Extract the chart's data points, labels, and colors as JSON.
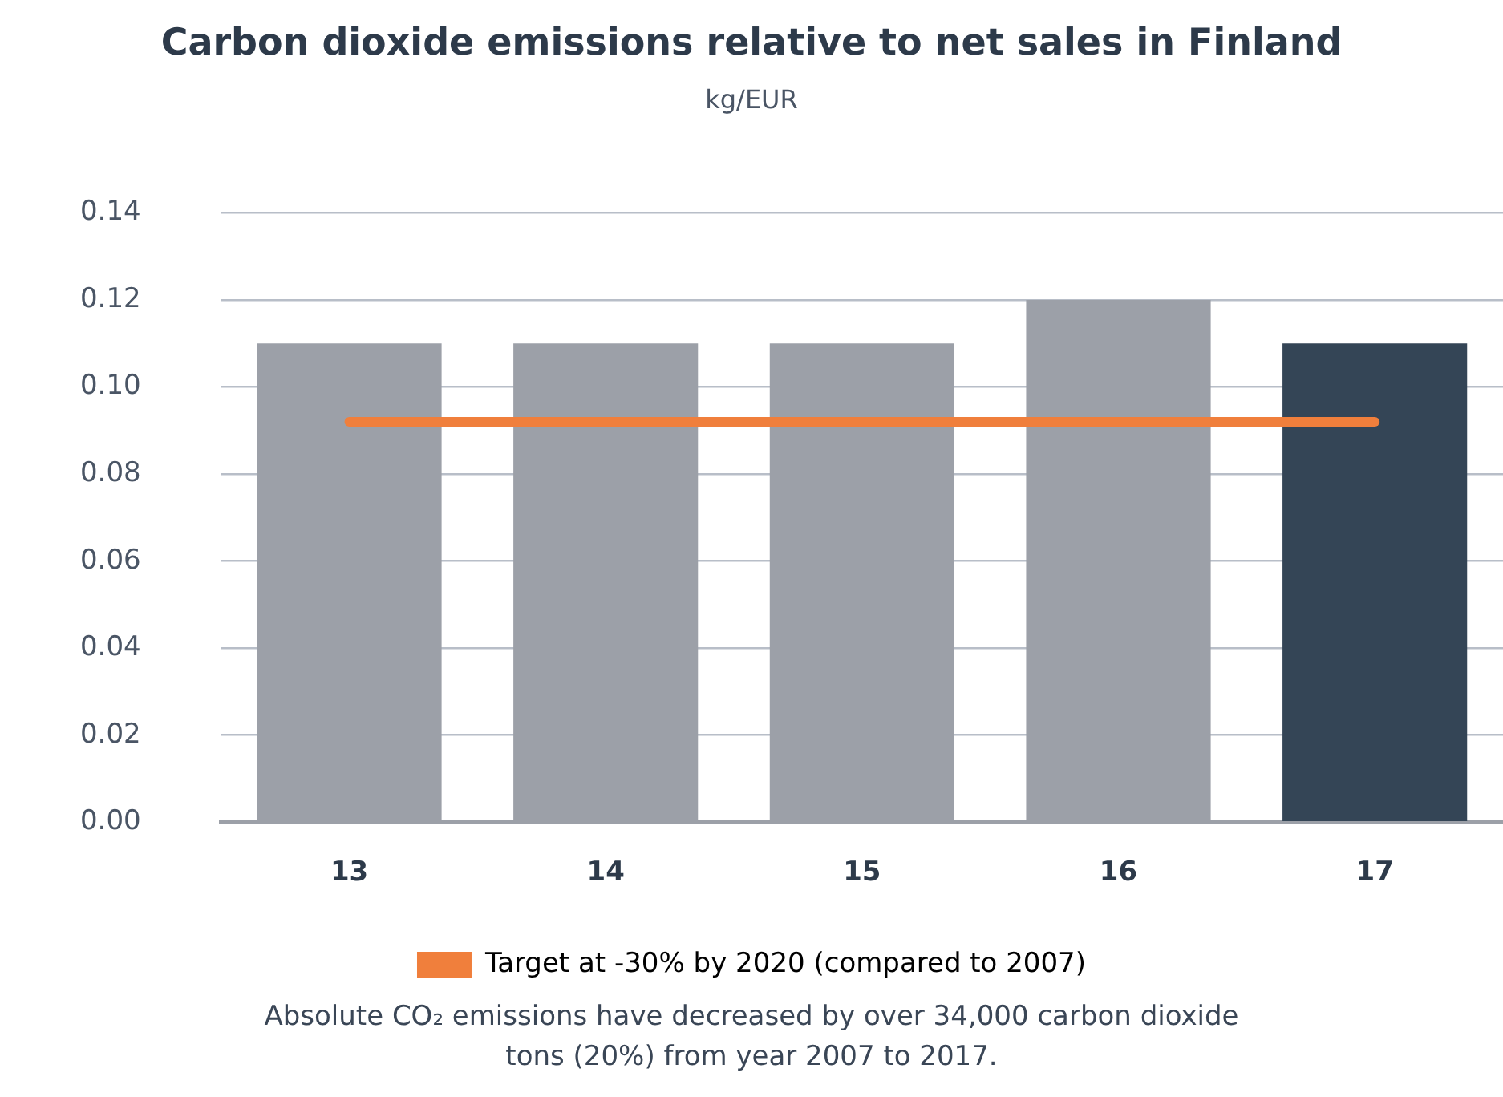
{
  "chart_data": {
    "type": "bar",
    "title": "Carbon dioxide emissions relative to net sales in Finland",
    "subtitle": "kg/EUR",
    "categories": [
      "13",
      "14",
      "15",
      "16",
      "17"
    ],
    "series": [
      {
        "colors": [
          "#9ca0a8",
          "#9ca0a8",
          "#9ca0a8",
          "#9ca0a8",
          "#344556"
        ],
        "values": [
          0.11,
          0.11,
          0.11,
          0.12,
          0.11
        ]
      },
      {
        "type": "line",
        "name": "Target at -30% by 2020 (compared to 2007)",
        "color": "#f07f3c",
        "values": [
          0.092,
          0.092,
          0.092,
          0.092,
          0.092
        ]
      }
    ],
    "ylim": [
      0,
      0.14
    ],
    "yticks": [
      {
        "value": 0,
        "label": "0.00"
      },
      {
        "value": 0.02,
        "label": "0.02"
      },
      {
        "value": 0.04,
        "label": "0.04"
      },
      {
        "value": 0.06,
        "label": "0.06"
      },
      {
        "value": 0.08,
        "label": "0.08"
      },
      {
        "value": 0.1,
        "label": "0.10"
      },
      {
        "value": 0.12,
        "label": "0.12"
      },
      {
        "value": 0.14,
        "label": "0.14"
      }
    ],
    "grid": "y",
    "legend": "bottom",
    "annotations": [
      "Absolute CO₂ emissions have decreased by over 34,000 carbon dioxide tons (20%) from year 2007 to 2017."
    ]
  }
}
